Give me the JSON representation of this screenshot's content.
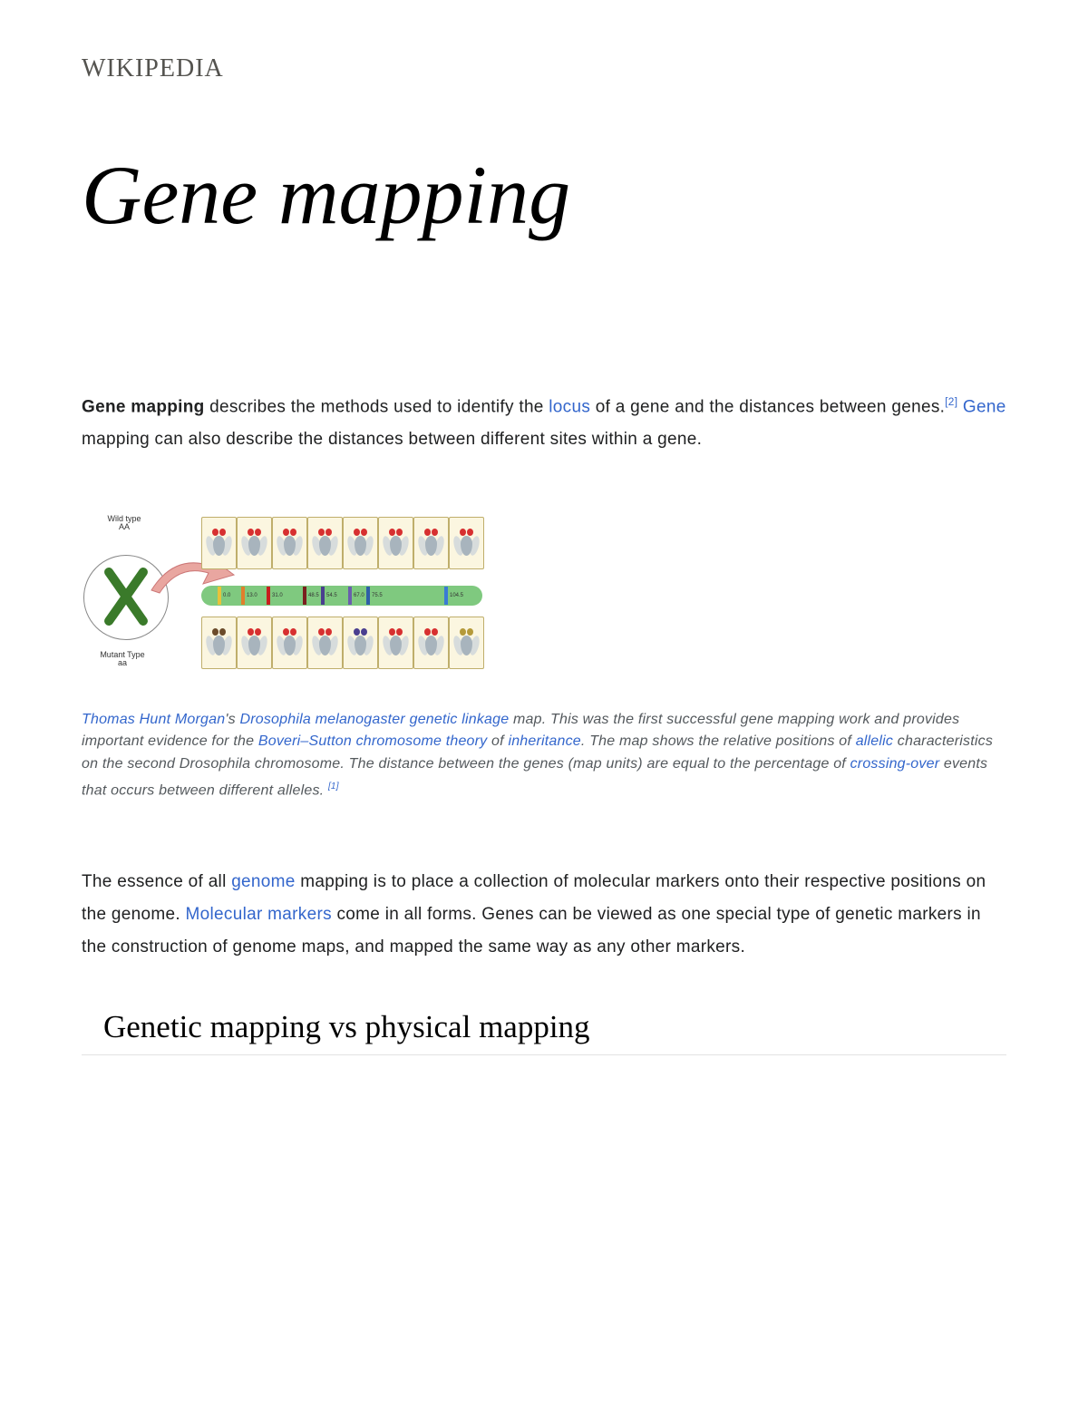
{
  "site": {
    "name": "WIKIPEDIA"
  },
  "page": {
    "title": "Gene mapping"
  },
  "intro": {
    "bold": "Gene mapping",
    "t1": " describes the methods used to identify the ",
    "link_locus": "locus",
    "t2": " of a gene and the distances between genes.",
    "ref2": "[2]",
    "t3": " ",
    "link_gene": "Gene",
    "t4": " mapping can also describe the distances between different sites within a gene."
  },
  "figure": {
    "label_wild": "Wild type AA",
    "label_mutant": "Mutant Type aa",
    "bar_color": "#7fc97f",
    "ticks": [
      {
        "pos": 150,
        "color": "#e8c23a",
        "num": "0.0"
      },
      {
        "pos": 176,
        "color": "#e07f2c",
        "num": "13.0"
      },
      {
        "pos": 204,
        "color": "#c81e1e",
        "num": "31.0"
      },
      {
        "pos": 244,
        "color": "#7a1f1f",
        "num": "48.5"
      },
      {
        "pos": 264,
        "color": "#4a3f8f",
        "num": "54.5"
      },
      {
        "pos": 294,
        "color": "#6a5fad",
        "num": "67.0"
      },
      {
        "pos": 314,
        "color": "#2f5fa8",
        "num": "75.5"
      },
      {
        "pos": 400,
        "color": "#3a7bd5",
        "num": "104.5"
      }
    ],
    "fly_variants_top": [
      "#d73030",
      "#d73030",
      "#d73030",
      "#d73030",
      "#d73030",
      "#d73030",
      "#d73030",
      "#d73030"
    ],
    "fly_variants_bot": [
      "#6b4b2a",
      "#d73030",
      "#d73030",
      "#d73030",
      "#4a3f8f",
      "#d73030",
      "#d73030",
      "#b59a3a"
    ]
  },
  "caption": {
    "link_morgan": "Thomas Hunt Morgan",
    "t1": "'s ",
    "link_drosophila": "Drosophila melanogaster",
    "t1b": " ",
    "link_linkage": "genetic linkage",
    "t1c": " map",
    "t2": ". This was the first successful gene mapping work and provides important evidence for the ",
    "link_boveri": "Boveri–Sutton chromosome theory",
    "t3": " of ",
    "link_inheritance": "inheritance",
    "t4": ". The map shows the relative positions of ",
    "link_allelic": "allelic",
    "t5": " characteristics on the second Drosophila chromosome. The distance between the genes (map units) are equal to the percentage of ",
    "link_crossing": "crossing-over",
    "t6": " events that occurs between different alleles. ",
    "ref1": "[1]"
  },
  "body": {
    "t1": "The essence of all ",
    "link_genome": "genome",
    "t2": " mapping is to place a collection of molecular markers onto their respective positions on the genome. ",
    "link_molmarkers": "Molecular markers",
    "t3": " come in all forms. Genes can be viewed as one special type of genetic markers in the construction of genome maps, and mapped the same way as any other markers."
  },
  "section": {
    "heading": "Genetic mapping vs physical mapping"
  }
}
